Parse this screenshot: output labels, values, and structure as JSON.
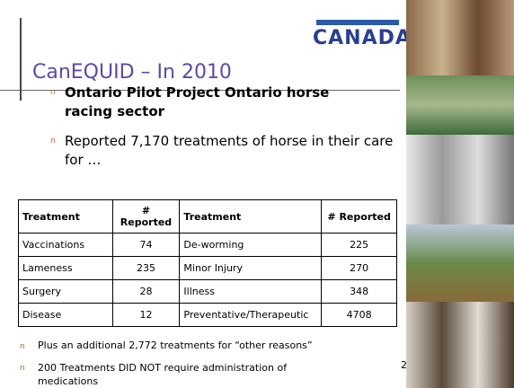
{
  "logo": {
    "text": "CANADA"
  },
  "title": "CanEQUID – In 2010",
  "bullets": [
    "Ontario Pilot Project Ontario horse racing sector",
    "Reported 7,170 treatments of horse in their care for …"
  ],
  "table": {
    "header": [
      "Treatment",
      "# Reported",
      "Treatment",
      "# Reported"
    ],
    "rows": [
      [
        "Vaccinations",
        "74",
        "De-worming",
        "225"
      ],
      [
        "Lameness",
        "235",
        "Minor Injury",
        "270"
      ],
      [
        "Surgery",
        "28",
        "Illness",
        "348"
      ],
      [
        "Disease",
        "12",
        "Preventative/Therapeutic",
        "4708"
      ]
    ]
  },
  "notes": [
    "Plus an additional 2,772 treatments for “other reasons”",
    "200 Treatments DID NOT require administration of medications"
  ],
  "page_number": "2"
}
